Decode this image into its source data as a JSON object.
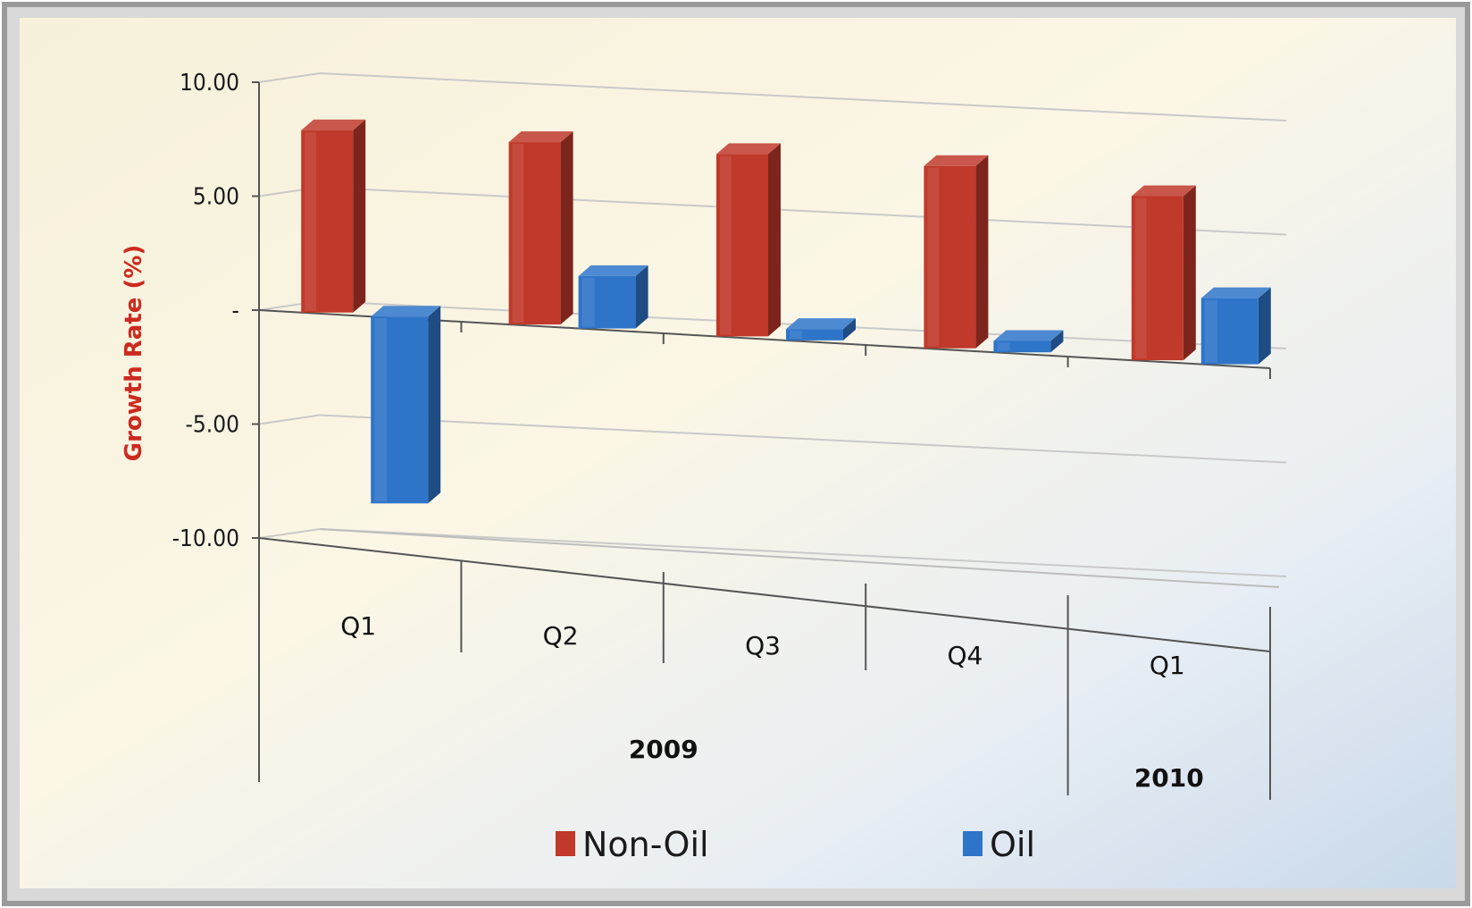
{
  "chart_data": {
    "type": "bar",
    "ylabel": "Growth Rate (%)",
    "ylim": [
      -10,
      10
    ],
    "yticks": [
      "10.00",
      "5.00",
      "-",
      "-5.00",
      "-10.00"
    ],
    "categories": [
      "Q1",
      "Q2",
      "Q3",
      "Q4",
      "Q1"
    ],
    "groups": [
      {
        "label": "2009",
        "span": 4
      },
      {
        "label": "2010",
        "span": 1
      }
    ],
    "series": [
      {
        "name": "Non-Oil",
        "color": "#c0392b",
        "values": [
          8.0,
          8.0,
          8.0,
          8.0,
          7.2
        ]
      },
      {
        "name": "Oil",
        "color": "#2e75c9",
        "values": [
          -8.2,
          2.3,
          0.5,
          0.5,
          2.9
        ]
      }
    ],
    "legend_position": "bottom",
    "grid": true,
    "style": "3d-column"
  },
  "colors": {
    "non_oil": "#c0392b",
    "oil": "#2e75c9",
    "ylabel": "#cc2a1f"
  }
}
